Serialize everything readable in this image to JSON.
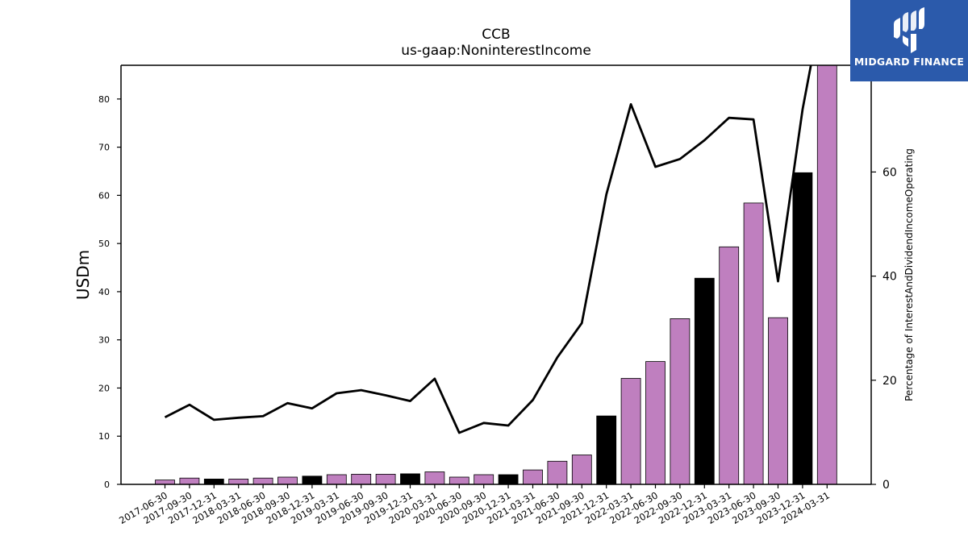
{
  "chart_data": {
    "type": "bar+line",
    "title": "CCB",
    "subtitle": "us-gaap:NoninterestIncome",
    "ylabel": "USDm",
    "ylabel_right": "Percentage of InterestAndDividendIncomeOperating",
    "ylim": [
      0,
      87
    ],
    "ylim_right": [
      0,
      80.5
    ],
    "yticks": [
      0,
      10,
      20,
      30,
      40,
      50,
      60,
      70,
      80
    ],
    "yticks_right": [
      0,
      20,
      40,
      60,
      80
    ],
    "categories": [
      "2017-06-30",
      "2017-09-30",
      "2017-12-31",
      "2018-03-31",
      "2018-06-30",
      "2018-09-30",
      "2018-12-31",
      "2019-03-31",
      "2019-06-30",
      "2019-09-30",
      "2019-12-31",
      "2020-03-31",
      "2020-06-30",
      "2020-09-30",
      "2020-12-31",
      "2021-03-31",
      "2021-06-30",
      "2021-09-30",
      "2021-12-31",
      "2022-03-31",
      "2022-06-30",
      "2022-09-30",
      "2022-12-31",
      "2023-03-31",
      "2023-06-30",
      "2023-09-30",
      "2023-12-31",
      "2024-03-31"
    ],
    "series": [
      {
        "kind": "bar",
        "values": [
          0.9,
          1.3,
          1.1,
          1.1,
          1.3,
          1.5,
          1.7,
          2.0,
          2.1,
          2.1,
          2.2,
          2.6,
          1.5,
          2.0,
          2.0,
          3.0,
          4.8,
          6.1,
          14.2,
          22.0,
          25.5,
          34.4,
          42.8,
          49.3,
          58.4,
          34.6,
          64.7,
          87
        ],
        "highlight": [
          false,
          false,
          true,
          false,
          false,
          false,
          true,
          false,
          false,
          false,
          true,
          false,
          false,
          false,
          true,
          false,
          false,
          false,
          true,
          false,
          false,
          false,
          true,
          false,
          false,
          false,
          true,
          false
        ]
      },
      {
        "kind": "line",
        "axis": "right",
        "values": [
          12.9,
          15.3,
          12.4,
          12.8,
          13.1,
          15.6,
          14.6,
          17.5,
          18.1,
          17.1,
          16.0,
          20.3,
          9.9,
          11.8,
          11.3,
          16.2,
          24.4,
          31.0,
          55.7,
          73.0,
          61.0,
          62.5,
          66.1,
          70.4,
          70.1,
          39.0,
          72.0,
          97.0
        ]
      }
    ],
    "colors": {
      "bar": "#bf7fbf",
      "bar_highlight": "#000000",
      "line": "#000000"
    }
  },
  "logo": {
    "text": "MIDGARD FINANCE",
    "background": "#2b5aab"
  }
}
